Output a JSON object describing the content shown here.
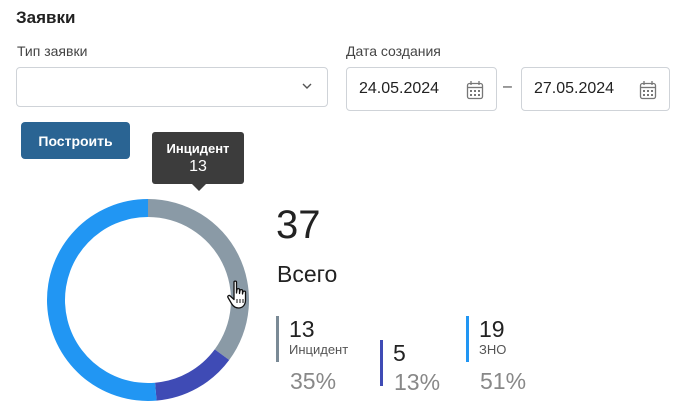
{
  "page": {
    "title": "Заявки"
  },
  "filters": {
    "type_label": "Тип заявки",
    "type_value": "",
    "date_label": "Дата создания",
    "date_from": "24.05.2024",
    "date_to": "27.05.2024",
    "separator": "–"
  },
  "build_button": {
    "label": "Построить"
  },
  "tooltip": {
    "name": "Инцидент",
    "value": "13"
  },
  "summary": {
    "total": "37",
    "total_label": "Всего"
  },
  "legend": [
    {
      "count": "13",
      "name": "Инцидент",
      "percent": "35%",
      "color": "#7a8a96"
    },
    {
      "count": "5",
      "name": "",
      "percent": "13%",
      "color": "#3f4bb5"
    },
    {
      "count": "19",
      "name": "ЗНО",
      "percent": "51%",
      "color": "#2196f3"
    }
  ],
  "chart_data": {
    "type": "pie",
    "style": "donut",
    "categories": [
      "Инцидент",
      "",
      "ЗНО"
    ],
    "values": [
      13,
      5,
      19
    ],
    "colors": [
      "#8a9aa6",
      "#3f4bb5",
      "#2196f3"
    ],
    "title": "",
    "total": 37
  },
  "icons": {
    "select_arrow": "chevron-down-icon",
    "date_picker": "calendar-icon",
    "pointer": "hand-cursor-icon"
  }
}
